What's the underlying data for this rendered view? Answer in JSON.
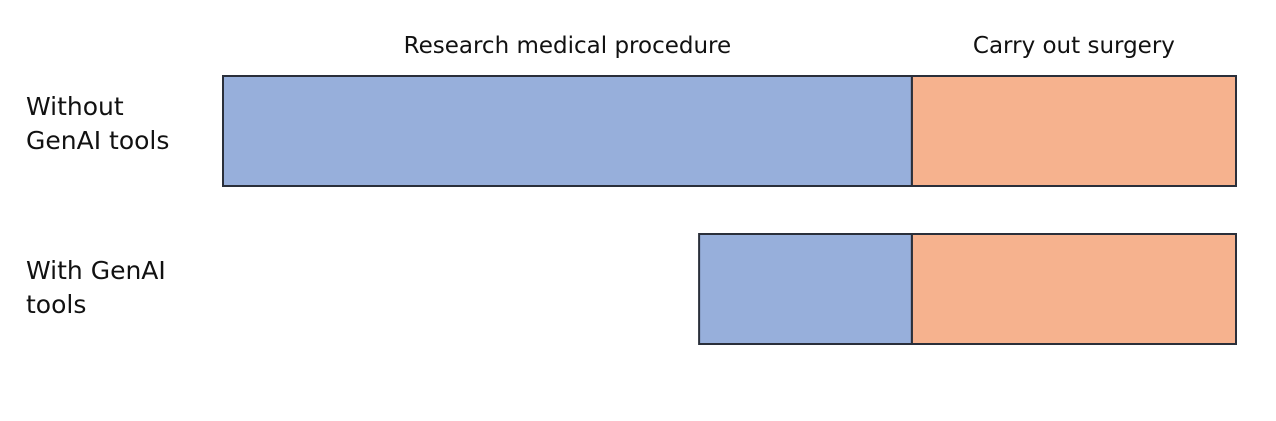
{
  "chart_data": {
    "type": "bar",
    "orientation": "horizontal",
    "stacked": true,
    "categories": [
      "Without\nGenAI tools",
      "With GenAI\ntools"
    ],
    "series": [
      {
        "name": "Research medical procedure",
        "color": "#97afdb",
        "values": [
          0.68,
          0.21
        ]
      },
      {
        "name": "Carry out surgery",
        "color": "#f6b28e",
        "values": [
          0.32,
          0.32
        ]
      }
    ],
    "xlim": [
      0,
      1
    ],
    "grid": false,
    "legend": "top",
    "title": "",
    "xlabel": "",
    "ylabel": ""
  }
}
